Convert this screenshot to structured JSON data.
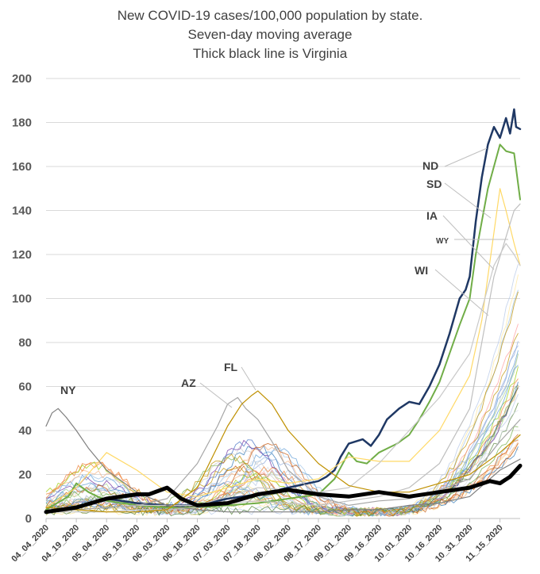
{
  "chart_data": {
    "type": "line",
    "title": [
      "New COVID-19 cases/100,000 population by state.",
      "Seven-day moving average",
      "Thick black line is Virginia"
    ],
    "xlabel": "",
    "ylabel": "",
    "ylim": [
      0,
      200
    ],
    "yticks": [
      0,
      20,
      40,
      60,
      80,
      100,
      120,
      140,
      160,
      180,
      200
    ],
    "grid": "horizontal",
    "legend": "none",
    "x_start": "04_04_2020",
    "x_end": "11_25_2020",
    "x_ticks": [
      "04_04_2020",
      "04_19_2020",
      "05_04_2020",
      "05_19_2020",
      "06_03_2020",
      "06_18_2020",
      "07_03_2020",
      "07_18_2020",
      "08_02_2020",
      "08_17_2020",
      "09_01_2020",
      "09_16_2020",
      "10_01_2020",
      "10_16_2020",
      "10_31_2020",
      "11_15_2020"
    ],
    "series": [
      {
        "name": "ND",
        "color": "#1f3864",
        "width": 2.5,
        "points": [
          [
            "04_04_2020",
            3
          ],
          [
            "04_19_2020",
            5
          ],
          [
            "05_04_2020",
            9
          ],
          [
            "05_19_2020",
            7
          ],
          [
            "06_03_2020",
            6
          ],
          [
            "06_18_2020",
            6
          ],
          [
            "07_03_2020",
            9
          ],
          [
            "07_18_2020",
            11
          ],
          [
            "08_02_2020",
            14
          ],
          [
            "08_17_2020",
            17
          ],
          [
            "08_21_2020",
            19
          ],
          [
            "08_25_2020",
            22
          ],
          [
            "08_28_2020",
            28
          ],
          [
            "09_01_2020",
            34
          ],
          [
            "09_08_2020",
            36
          ],
          [
            "09_12_2020",
            33
          ],
          [
            "09_16_2020",
            38
          ],
          [
            "09_20_2020",
            45
          ],
          [
            "09_26_2020",
            50
          ],
          [
            "10_01_2020",
            53
          ],
          [
            "10_06_2020",
            52
          ],
          [
            "10_11_2020",
            60
          ],
          [
            "10_16_2020",
            70
          ],
          [
            "10_21_2020",
            84
          ],
          [
            "10_26_2020",
            100
          ],
          [
            "10_29_2020",
            104
          ],
          [
            "10_31_2020",
            110
          ],
          [
            "11_03_2020",
            135
          ],
          [
            "11_06_2020",
            155
          ],
          [
            "11_09_2020",
            170
          ],
          [
            "11_12_2020",
            178
          ],
          [
            "11_15_2020",
            173
          ],
          [
            "11_18_2020",
            182
          ],
          [
            "11_20_2020",
            175
          ],
          [
            "11_22_2020",
            186
          ],
          [
            "11_23_2020",
            178
          ],
          [
            "11_25_2020",
            177
          ]
        ]
      },
      {
        "name": "SD",
        "color": "#70ad47",
        "width": 2,
        "points": [
          [
            "04_04_2020",
            4
          ],
          [
            "04_15_2020",
            10
          ],
          [
            "04_19_2020",
            16
          ],
          [
            "04_25_2020",
            12
          ],
          [
            "05_04_2020",
            8
          ],
          [
            "05_19_2020",
            6
          ],
          [
            "06_03_2020",
            5
          ],
          [
            "06_18_2020",
            5
          ],
          [
            "07_03_2020",
            6
          ],
          [
            "07_18_2020",
            7
          ],
          [
            "08_02_2020",
            9
          ],
          [
            "08_17_2020",
            11
          ],
          [
            "08_25_2020",
            18
          ],
          [
            "09_01_2020",
            30
          ],
          [
            "09_05_2020",
            26
          ],
          [
            "09_10_2020",
            25
          ],
          [
            "09_16_2020",
            30
          ],
          [
            "09_25_2020",
            34
          ],
          [
            "10_01_2020",
            38
          ],
          [
            "10_06_2020",
            45
          ],
          [
            "10_11_2020",
            53
          ],
          [
            "10_16_2020",
            62
          ],
          [
            "10_21_2020",
            75
          ],
          [
            "10_26_2020",
            88
          ],
          [
            "10_31_2020",
            100
          ],
          [
            "11_03_2020",
            120
          ],
          [
            "11_06_2020",
            135
          ],
          [
            "11_09_2020",
            150
          ],
          [
            "11_12_2020",
            160
          ],
          [
            "11_15_2020",
            170
          ],
          [
            "11_18_2020",
            167
          ],
          [
            "11_22_2020",
            166
          ],
          [
            "11_25_2020",
            145
          ]
        ]
      },
      {
        "name": "IA",
        "color": "#ffd966",
        "width": 1.2,
        "points": [
          [
            "04_04_2020",
            5
          ],
          [
            "04_19_2020",
            14
          ],
          [
            "05_04_2020",
            30
          ],
          [
            "05_19_2020",
            22
          ],
          [
            "06_03_2020",
            12
          ],
          [
            "06_18_2020",
            10
          ],
          [
            "07_03_2020",
            14
          ],
          [
            "07_18_2020",
            18
          ],
          [
            "08_02_2020",
            16
          ],
          [
            "08_17_2020",
            18
          ],
          [
            "09_01_2020",
            28
          ],
          [
            "09_16_2020",
            26
          ],
          [
            "10_01_2020",
            26
          ],
          [
            "10_16_2020",
            40
          ],
          [
            "10_31_2020",
            65
          ],
          [
            "11_06_2020",
            90
          ],
          [
            "11_12_2020",
            130
          ],
          [
            "11_15_2020",
            150
          ],
          [
            "11_18_2020",
            140
          ],
          [
            "11_22_2020",
            125
          ],
          [
            "11_25_2020",
            115
          ]
        ]
      },
      {
        "name": "WY",
        "color": "#bfbfbf",
        "width": 1.2,
        "points": [
          [
            "04_04_2020",
            3
          ],
          [
            "04_19_2020",
            3
          ],
          [
            "05_04_2020",
            3
          ],
          [
            "05_19_2020",
            4
          ],
          [
            "06_03_2020",
            4
          ],
          [
            "06_18_2020",
            5
          ],
          [
            "07_03_2020",
            7
          ],
          [
            "07_18_2020",
            8
          ],
          [
            "08_02_2020",
            7
          ],
          [
            "08_17_2020",
            6
          ],
          [
            "09_01_2020",
            8
          ],
          [
            "09_16_2020",
            10
          ],
          [
            "10_01_2020",
            14
          ],
          [
            "10_16_2020",
            25
          ],
          [
            "10_31_2020",
            50
          ],
          [
            "11_06_2020",
            80
          ],
          [
            "11_12_2020",
            110
          ],
          [
            "11_18_2020",
            128
          ],
          [
            "11_22_2020",
            140
          ],
          [
            "11_25_2020",
            143
          ]
        ]
      },
      {
        "name": "WI",
        "color": "#c9c9c9",
        "width": 1.2,
        "points": [
          [
            "04_04_2020",
            3
          ],
          [
            "04_19_2020",
            4
          ],
          [
            "05_04_2020",
            5
          ],
          [
            "05_19_2020",
            6
          ],
          [
            "06_03_2020",
            6
          ],
          [
            "06_18_2020",
            6
          ],
          [
            "07_03_2020",
            10
          ],
          [
            "07_18_2020",
            14
          ],
          [
            "08_02_2020",
            13
          ],
          [
            "08_17_2020",
            12
          ],
          [
            "09_01_2020",
            14
          ],
          [
            "09_16_2020",
            25
          ],
          [
            "10_01_2020",
            40
          ],
          [
            "10_16_2020",
            55
          ],
          [
            "10_31_2020",
            75
          ],
          [
            "11_06_2020",
            95
          ],
          [
            "11_12_2020",
            115
          ],
          [
            "11_18_2020",
            125
          ],
          [
            "11_22_2020",
            120
          ],
          [
            "11_25_2020",
            115
          ]
        ]
      },
      {
        "name": "NY",
        "color": "#7f7f7f",
        "width": 1.2,
        "points": [
          [
            "04_04_2020",
            42
          ],
          [
            "04_07_2020",
            48
          ],
          [
            "04_10_2020",
            50
          ],
          [
            "04_14_2020",
            46
          ],
          [
            "04_19_2020",
            40
          ],
          [
            "04_25_2020",
            32
          ],
          [
            "05_04_2020",
            22
          ],
          [
            "05_19_2020",
            12
          ],
          [
            "06_03_2020",
            6
          ],
          [
            "06_18_2020",
            4
          ],
          [
            "07_03_2020",
            3
          ],
          [
            "07_18_2020",
            3
          ],
          [
            "08_02_2020",
            3
          ],
          [
            "08_17_2020",
            3
          ],
          [
            "09_01_2020",
            4
          ],
          [
            "09_16_2020",
            4
          ],
          [
            "10_01_2020",
            6
          ],
          [
            "10_16_2020",
            7
          ],
          [
            "10_31_2020",
            10
          ],
          [
            "11_15_2020",
            22
          ],
          [
            "11_25_2020",
            27
          ]
        ]
      },
      {
        "name": "AZ",
        "color": "#a6a6a6",
        "width": 1.2,
        "points": [
          [
            "04_04_2020",
            3
          ],
          [
            "04_19_2020",
            4
          ],
          [
            "05_04_2020",
            5
          ],
          [
            "05_19_2020",
            6
          ],
          [
            "06_03_2020",
            9
          ],
          [
            "06_18_2020",
            25
          ],
          [
            "06_28_2020",
            42
          ],
          [
            "07_03_2020",
            52
          ],
          [
            "07_08_2020",
            55
          ],
          [
            "07_12_2020",
            50
          ],
          [
            "07_18_2020",
            45
          ],
          [
            "07_25_2020",
            35
          ],
          [
            "08_02_2020",
            22
          ],
          [
            "08_17_2020",
            10
          ],
          [
            "09_01_2020",
            6
          ],
          [
            "09_16_2020",
            8
          ],
          [
            "10_01_2020",
            9
          ],
          [
            "10_16_2020",
            13
          ],
          [
            "10_31_2020",
            18
          ],
          [
            "11_15_2020",
            35
          ],
          [
            "11_25_2020",
            45
          ]
        ]
      },
      {
        "name": "FL",
        "color": "#bf9000",
        "width": 1.2,
        "points": [
          [
            "04_04_2020",
            5
          ],
          [
            "04_19_2020",
            4
          ],
          [
            "05_04_2020",
            3
          ],
          [
            "05_19_2020",
            3
          ],
          [
            "06_03_2020",
            4
          ],
          [
            "06_18_2020",
            14
          ],
          [
            "07_03_2020",
            42
          ],
          [
            "07_10_2020",
            52
          ],
          [
            "07_15_2020",
            56
          ],
          [
            "07_18_2020",
            58
          ],
          [
            "07_25_2020",
            52
          ],
          [
            "08_02_2020",
            40
          ],
          [
            "08_17_2020",
            25
          ],
          [
            "09_01_2020",
            15
          ],
          [
            "09_16_2020",
            12
          ],
          [
            "10_01_2020",
            12
          ],
          [
            "10_16_2020",
            16
          ],
          [
            "10_31_2020",
            20
          ],
          [
            "11_15_2020",
            30
          ],
          [
            "11_25_2020",
            38
          ]
        ]
      },
      {
        "name": "Virginia",
        "color": "#000000",
        "width": 5,
        "points": [
          [
            "04_04_2020",
            3
          ],
          [
            "04_19_2020",
            5
          ],
          [
            "05_04_2020",
            9
          ],
          [
            "05_19_2020",
            11
          ],
          [
            "05_25_2020",
            11
          ],
          [
            "06_03_2020",
            14
          ],
          [
            "06_10_2020",
            9
          ],
          [
            "06_18_2020",
            6
          ],
          [
            "07_03_2020",
            7
          ],
          [
            "07_18_2020",
            11
          ],
          [
            "08_02_2020",
            13
          ],
          [
            "08_17_2020",
            11
          ],
          [
            "09_01_2020",
            10
          ],
          [
            "09_16_2020",
            12
          ],
          [
            "10_01_2020",
            10
          ],
          [
            "10_16_2020",
            12
          ],
          [
            "10_31_2020",
            14
          ],
          [
            "11_10_2020",
            17
          ],
          [
            "11_15_2020",
            16
          ],
          [
            "11_20_2020",
            19
          ],
          [
            "11_25_2020",
            24
          ]
        ]
      }
    ],
    "annotations": [
      "NY",
      "AZ",
      "FL",
      "ND",
      "SD",
      "IA",
      "WY",
      "WI"
    ]
  }
}
